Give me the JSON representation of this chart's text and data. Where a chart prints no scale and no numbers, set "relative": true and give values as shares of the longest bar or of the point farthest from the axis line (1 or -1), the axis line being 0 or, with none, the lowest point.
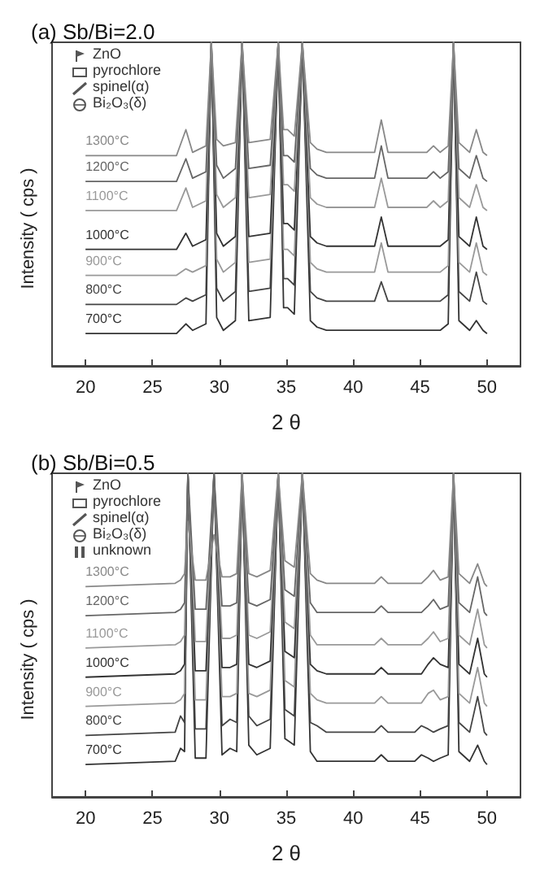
{
  "chart_data": [
    {
      "type": "line",
      "title": "(a) Sb/Bi=2.0",
      "xlabel": "2 θ",
      "ylabel": "Intensity ( cps )",
      "relative": true,
      "xlim": [
        17.5,
        52.5
      ],
      "xticks": [
        20,
        25,
        30,
        35,
        40,
        45,
        50
      ],
      "annotations": [
        "ZnO",
        "pyrochlore",
        "spinel(α)",
        "Bi₂O₃(δ)"
      ],
      "x": [
        20,
        26.8,
        27.5,
        28,
        29,
        29.4,
        29.8,
        30.3,
        31.2,
        31.7,
        32.2,
        33.8,
        34.4,
        34.8,
        35.1,
        35.6,
        36.2,
        36.8,
        37.3,
        38,
        41.6,
        42.1,
        42.6,
        45.5,
        46,
        46.5,
        47.1,
        47.5,
        47.9,
        48.7,
        49.2,
        49.7,
        50
      ],
      "series": [
        {
          "name": "700°C",
          "color": "#333333",
          "values": [
            0.1,
            0.1,
            0.13,
            0.11,
            0.13,
            1,
            0.15,
            0.11,
            0.14,
            1,
            0.14,
            0.15,
            1,
            0.18,
            0.18,
            0.16,
            1,
            0.14,
            0.12,
            0.11,
            0.11,
            0.11,
            0.11,
            0.11,
            0.11,
            0.11,
            0.13,
            1,
            0.14,
            0.11,
            0.14,
            0.11,
            0.1
          ]
        },
        {
          "name": "800°C",
          "color": "#444444",
          "values": [
            0.19,
            0.19,
            0.21,
            0.2,
            0.22,
            1,
            0.24,
            0.2,
            0.23,
            1,
            0.23,
            0.24,
            1,
            0.27,
            0.27,
            0.25,
            1,
            0.23,
            0.21,
            0.2,
            0.2,
            0.26,
            0.2,
            0.2,
            0.2,
            0.2,
            0.22,
            1,
            0.23,
            0.2,
            0.29,
            0.2,
            0.19
          ]
        },
        {
          "name": "900°C",
          "color": "#999999",
          "values": [
            0.28,
            0.28,
            0.3,
            0.29,
            0.31,
            1,
            0.33,
            0.29,
            0.32,
            1,
            0.32,
            0.33,
            1,
            0.36,
            0.36,
            0.34,
            1,
            0.32,
            0.3,
            0.29,
            0.29,
            0.38,
            0.29,
            0.29,
            0.29,
            0.29,
            0.31,
            1,
            0.32,
            0.29,
            0.38,
            0.29,
            0.28
          ]
        },
        {
          "name": "1000°C",
          "color": "#333333",
          "values": [
            0.36,
            0.36,
            0.41,
            0.37,
            0.39,
            1,
            0.41,
            0.37,
            0.4,
            1,
            0.4,
            0.41,
            1,
            0.44,
            0.44,
            0.42,
            1,
            0.4,
            0.38,
            0.37,
            0.37,
            0.46,
            0.37,
            0.37,
            0.37,
            0.37,
            0.39,
            1,
            0.4,
            0.37,
            0.46,
            0.37,
            0.36
          ]
        },
        {
          "name": "1100°C",
          "color": "#999999",
          "values": [
            0.48,
            0.48,
            0.55,
            0.49,
            0.51,
            1,
            0.53,
            0.49,
            0.52,
            1,
            0.52,
            0.53,
            1,
            0.56,
            0.56,
            0.54,
            1,
            0.52,
            0.5,
            0.49,
            0.49,
            0.58,
            0.49,
            0.49,
            0.51,
            0.49,
            0.51,
            1,
            0.52,
            0.49,
            0.56,
            0.49,
            0.48
          ]
        },
        {
          "name": "1200°C",
          "color": "#666666",
          "values": [
            0.57,
            0.57,
            0.64,
            0.58,
            0.6,
            1,
            0.62,
            0.58,
            0.61,
            1,
            0.61,
            0.62,
            1,
            0.65,
            0.65,
            0.63,
            1,
            0.61,
            0.59,
            0.58,
            0.58,
            0.68,
            0.58,
            0.58,
            0.6,
            0.58,
            0.6,
            1,
            0.61,
            0.58,
            0.65,
            0.58,
            0.57
          ]
        },
        {
          "name": "1300°C",
          "color": "#888888",
          "values": [
            0.65,
            0.65,
            0.73,
            0.66,
            0.68,
            1,
            0.7,
            0.68,
            0.69,
            1,
            0.69,
            0.7,
            1,
            0.73,
            0.73,
            0.71,
            1,
            0.69,
            0.67,
            0.66,
            0.66,
            0.76,
            0.66,
            0.66,
            0.68,
            0.66,
            0.68,
            1,
            0.69,
            0.66,
            0.73,
            0.66,
            0.65
          ]
        }
      ]
    },
    {
      "type": "line",
      "title": "(b) Sb/Bi=0.5",
      "xlabel": "2 θ",
      "ylabel": "Intensity ( cps )",
      "relative": true,
      "xlim": [
        17.5,
        52.5
      ],
      "xticks": [
        20,
        25,
        30,
        35,
        40,
        45,
        50
      ],
      "annotations": [
        "ZnO",
        "pyrochlore",
        "spinel(α)",
        "Bi₂O₃(δ)",
        "unknown"
      ],
      "x": [
        20,
        26.7,
        27.1,
        27.4,
        27.65,
        28.2,
        29,
        29.6,
        30.2,
        30.8,
        31.3,
        31.7,
        32.2,
        32.8,
        33.8,
        34.4,
        34.9,
        35.6,
        36.2,
        36.8,
        37.3,
        38,
        41.6,
        42.1,
        42.6,
        44.6,
        45.1,
        45.6,
        46,
        46.5,
        47.1,
        47.5,
        47.9,
        48.7,
        49.3,
        49.8,
        50
      ],
      "series": [
        {
          "name": "700°C",
          "color": "#333333",
          "values": [
            0.1,
            0.11,
            0.15,
            0.14,
            1,
            0.12,
            0.12,
            1,
            0.13,
            0.15,
            0.14,
            1,
            0.16,
            0.13,
            0.15,
            1,
            0.18,
            0.16,
            1,
            0.14,
            0.11,
            0.11,
            0.11,
            0.13,
            0.11,
            0.11,
            0.13,
            0.12,
            0.11,
            0.12,
            0.13,
            1,
            0.14,
            0.11,
            0.16,
            0.11,
            0.1
          ]
        },
        {
          "name": "800°C",
          "color": "#444444",
          "values": [
            0.19,
            0.2,
            0.25,
            0.23,
            1,
            0.21,
            0.21,
            1,
            0.22,
            0.24,
            0.23,
            1,
            0.25,
            0.22,
            0.24,
            1,
            0.27,
            0.25,
            1,
            0.23,
            0.22,
            0.2,
            0.2,
            0.22,
            0.2,
            0.2,
            0.22,
            0.21,
            0.2,
            0.21,
            0.22,
            1,
            0.23,
            0.2,
            0.31,
            0.2,
            0.19
          ]
        },
        {
          "name": "900°C",
          "color": "#999999",
          "values": [
            0.28,
            0.29,
            0.3,
            0.32,
            1,
            0.3,
            0.3,
            1,
            0.31,
            0.31,
            0.32,
            1,
            0.32,
            0.31,
            0.33,
            1,
            0.36,
            0.34,
            1,
            0.32,
            0.3,
            0.29,
            0.29,
            0.31,
            0.29,
            0.29,
            0.29,
            0.32,
            0.33,
            0.3,
            0.31,
            1,
            0.32,
            0.29,
            0.4,
            0.29,
            0.28
          ]
        },
        {
          "name": "1000°C",
          "color": "#333333",
          "values": [
            0.37,
            0.38,
            0.39,
            0.41,
            1,
            0.39,
            0.39,
            1,
            0.4,
            0.4,
            0.41,
            1,
            0.41,
            0.4,
            0.42,
            1,
            0.45,
            0.43,
            1,
            0.41,
            0.39,
            0.38,
            0.38,
            0.4,
            0.38,
            0.38,
            0.38,
            0.41,
            0.43,
            0.41,
            0.4,
            1,
            0.41,
            0.38,
            0.49,
            0.38,
            0.37
          ]
        },
        {
          "name": "1100°C",
          "color": "#999999",
          "values": [
            0.46,
            0.47,
            0.48,
            0.5,
            1,
            0.48,
            0.48,
            1,
            0.49,
            0.49,
            0.5,
            1,
            0.5,
            0.49,
            0.51,
            1,
            0.54,
            0.52,
            1,
            0.5,
            0.47,
            0.47,
            0.47,
            0.49,
            0.47,
            0.47,
            0.47,
            0.49,
            0.51,
            0.48,
            0.49,
            1,
            0.5,
            0.47,
            0.58,
            0.47,
            0.46
          ]
        },
        {
          "name": "1200°C",
          "color": "#666666",
          "values": [
            0.56,
            0.57,
            0.58,
            0.6,
            1,
            0.58,
            0.58,
            1,
            0.59,
            0.59,
            0.6,
            1,
            0.6,
            0.59,
            0.61,
            1,
            0.64,
            0.62,
            1,
            0.6,
            0.57,
            0.57,
            0.57,
            0.59,
            0.57,
            0.57,
            0.57,
            0.59,
            0.61,
            0.58,
            0.59,
            1,
            0.6,
            0.57,
            0.68,
            0.57,
            0.56
          ]
        },
        {
          "name": "1300°C",
          "color": "#888888",
          "values": [
            0.65,
            0.66,
            0.67,
            0.69,
            0.85,
            0.67,
            0.67,
            0.81,
            0.68,
            0.68,
            0.69,
            1,
            0.69,
            0.68,
            0.7,
            1,
            0.73,
            0.71,
            1,
            0.69,
            0.67,
            0.66,
            0.66,
            0.68,
            0.66,
            0.66,
            0.66,
            0.68,
            0.7,
            0.67,
            0.68,
            1,
            0.69,
            0.66,
            0.72,
            0.66,
            0.65
          ]
        }
      ]
    }
  ]
}
